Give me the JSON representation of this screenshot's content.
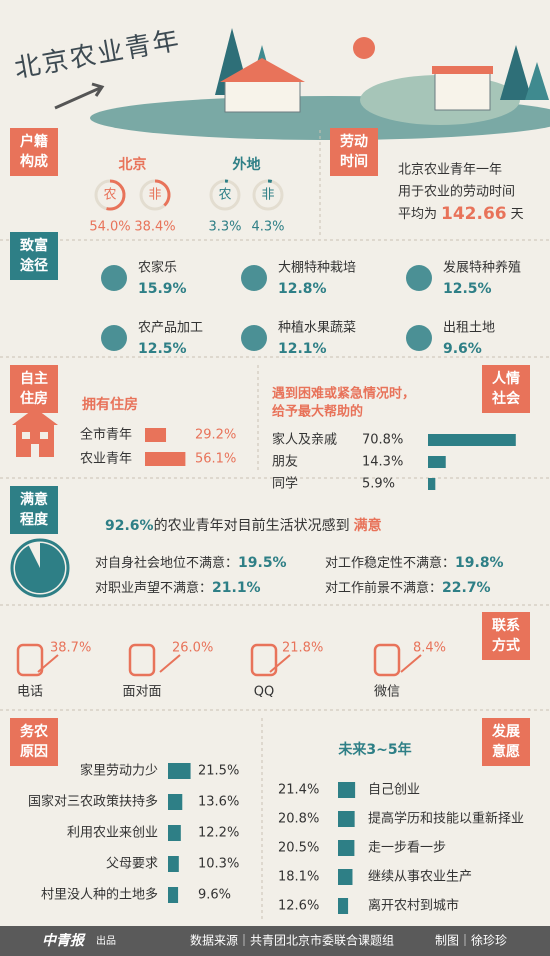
{
  "header": {
    "title": "北京农业青年"
  },
  "residence": {
    "title": [
      "户籍",
      "构成"
    ],
    "groups": [
      {
        "name": "北京",
        "items": [
          {
            "icon": "农",
            "value": 54.0,
            "label": "54.0%"
          },
          {
            "icon": "非",
            "value": 38.4,
            "label": "38.4%"
          }
        ]
      },
      {
        "name": "外地",
        "items": [
          {
            "icon": "农",
            "value": 3.3,
            "label": "3.3%"
          },
          {
            "icon": "非",
            "value": 4.3,
            "label": "4.3%"
          }
        ]
      }
    ]
  },
  "labor": {
    "title": [
      "劳动",
      "时间"
    ],
    "lines": [
      "北京农业青年一年",
      "用于农业的劳动时间"
    ],
    "prefix": "平均为",
    "value": 142.66,
    "unit": "天"
  },
  "wealth": {
    "title": [
      "致富",
      "途径"
    ],
    "items": [
      {
        "name": "农家乐",
        "value": "15.9%"
      },
      {
        "name": "大棚特种栽培",
        "value": "12.8%"
      },
      {
        "name": "发展特种养殖",
        "value": "12.5%"
      },
      {
        "name": "农产品加工",
        "value": "12.5%"
      },
      {
        "name": "种植水果蔬菜",
        "value": "12.1%"
      },
      {
        "name": "出租土地",
        "value": "9.6%"
      }
    ]
  },
  "housing": {
    "title": [
      "自主",
      "住房"
    ],
    "subtitle": "拥有住房",
    "rows": [
      {
        "name": "全市青年",
        "value": 29.2,
        "label": "29.2%"
      },
      {
        "name": "农业青年",
        "value": 56.1,
        "label": "56.1%"
      }
    ]
  },
  "help": {
    "title": [
      "人情",
      "社会"
    ],
    "question": [
      "遇到困难或紧急情况时，",
      "给予最大帮助的"
    ],
    "rows": [
      {
        "name": "家人及亲戚",
        "value": 70.8,
        "label": "70.8%"
      },
      {
        "name": "朋友",
        "value": 14.3,
        "label": "14.3%"
      },
      {
        "name": "同学",
        "value": 5.9,
        "label": "5.9%"
      }
    ]
  },
  "satisfaction": {
    "title": [
      "满意",
      "程度"
    ],
    "headline": {
      "value": 92.6,
      "label": "92.6%",
      "text": "的农业青年对目前生活状况感到",
      "emphasis": "满意"
    },
    "items": [
      {
        "text": "对自身社会地位不满意：",
        "value": "19.5%"
      },
      {
        "text": "对工作稳定性不满意：",
        "value": "19.8%"
      },
      {
        "text": "对职业声望不满意：",
        "value": "21.1%"
      },
      {
        "text": "对工作前景不满意：",
        "value": "22.7%"
      }
    ]
  },
  "contact": {
    "title": [
      "联系",
      "方式"
    ],
    "items": [
      {
        "name": "电话",
        "value": "38.7%"
      },
      {
        "name": "面对面",
        "value": "26.0%"
      },
      {
        "name": "QQ",
        "value": "21.8%"
      },
      {
        "name": "微信",
        "value": "8.4%"
      }
    ]
  },
  "reasons": {
    "title": [
      "务农",
      "原因"
    ],
    "rows": [
      {
        "name": "家里劳动力少",
        "value": 21.5,
        "label": "21.5%"
      },
      {
        "name": "国家对三农政策扶持多",
        "value": 13.6,
        "label": "13.6%"
      },
      {
        "name": "利用农业来创业",
        "value": 12.2,
        "label": "12.2%"
      },
      {
        "name": "父母要求",
        "value": 10.3,
        "label": "10.3%"
      },
      {
        "name": "村里没人种的土地多",
        "value": 9.6,
        "label": "9.6%"
      }
    ]
  },
  "plans": {
    "title": [
      "发展",
      "意愿"
    ],
    "subtitle": "未来3~5年",
    "rows": [
      {
        "name": "自己创业",
        "value": 21.4,
        "label": "21.4%"
      },
      {
        "name": "提高学历和技能以重新择业",
        "value": 20.8,
        "label": "20.8%"
      },
      {
        "name": "走一步看一步",
        "value": 20.5,
        "label": "20.5%"
      },
      {
        "name": "继续从事农业生产",
        "value": 18.1,
        "label": "18.1%"
      },
      {
        "name": "离开农村到城市",
        "value": 12.6,
        "label": "12.6%"
      }
    ]
  },
  "footer": {
    "logo": "中青报",
    "logo_tag": "出品",
    "source": "数据来源｜共青团北京市委联合课题组",
    "credit": "制图｜徐珍珍"
  }
}
